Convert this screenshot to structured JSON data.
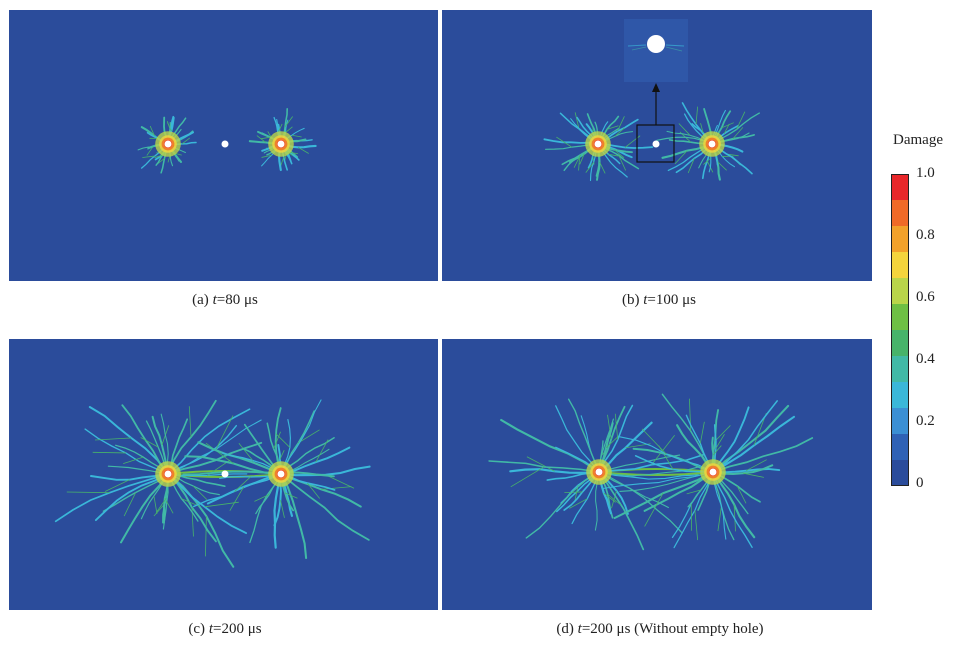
{
  "panels": [
    {
      "id": "a",
      "caption_prefix": "(a) ",
      "caption_var": "t",
      "caption_rest": "=80 μs"
    },
    {
      "id": "b",
      "caption_prefix": "(b) ",
      "caption_var": "t",
      "caption_rest": "=100 μs"
    },
    {
      "id": "c",
      "caption_prefix": "(c) ",
      "caption_var": "t",
      "caption_rest": "=200 μs"
    },
    {
      "id": "d",
      "caption_prefix": "(d) ",
      "caption_var": "t",
      "caption_rest": "=200 μs (Without empty hole)"
    }
  ],
  "legend": {
    "title": "Damage",
    "ticks": [
      "1.0",
      "0.8",
      "0.6",
      "0.4",
      "0.2",
      "0"
    ],
    "colors": [
      "#e8272a",
      "#f06a27",
      "#f2a12a",
      "#f4d43c",
      "#b9d54a",
      "#6ebf44",
      "#47b36a",
      "#41b9a6",
      "#3ab7d9",
      "#3b8fd4",
      "#2f62b6",
      "#2b4c9b"
    ]
  },
  "colors": {
    "background": "#2b4c9b"
  }
}
